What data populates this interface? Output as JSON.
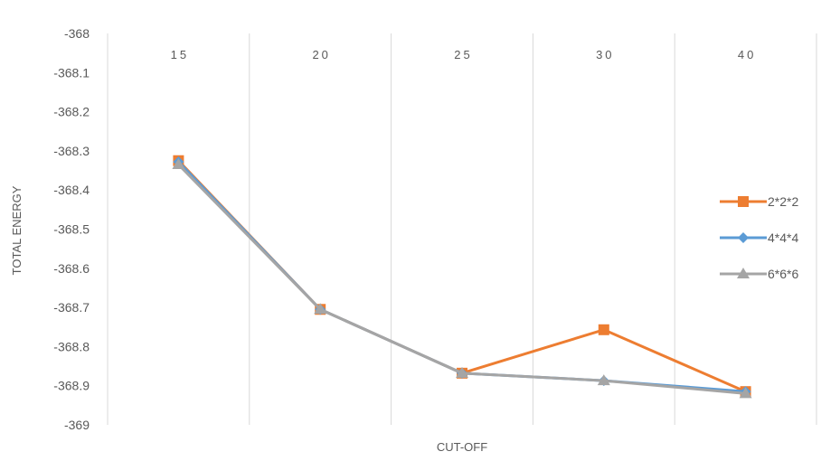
{
  "chart_data": {
    "type": "line",
    "title": "",
    "xlabel": "CUT-OFF",
    "ylabel": "TOTAL ENERGY",
    "categories": [
      "15",
      "20",
      "25",
      "30",
      "40"
    ],
    "ylim": [
      -369,
      -368
    ],
    "yticks": [
      "-368",
      "-368.1",
      "-368.2",
      "-368.3",
      "-368.4",
      "-368.5",
      "-368.6",
      "-368.7",
      "-368.8",
      "-368.9",
      "-369"
    ],
    "grid": "vertical",
    "legend_position": "right",
    "series": [
      {
        "name": "2*2*2",
        "color": "#ED7D31",
        "marker": "square",
        "values": [
          -368.325,
          -368.705,
          -368.868,
          -368.757,
          -368.915
        ]
      },
      {
        "name": "4*4*4",
        "color": "#5B9BD5",
        "marker": "diamond",
        "values": [
          -368.328,
          -368.705,
          -368.868,
          -368.887,
          -368.915
        ]
      },
      {
        "name": "6*6*6",
        "color": "#A5A5A5",
        "marker": "triangle",
        "values": [
          -368.335,
          -368.705,
          -368.868,
          -368.887,
          -368.92
        ]
      }
    ]
  }
}
